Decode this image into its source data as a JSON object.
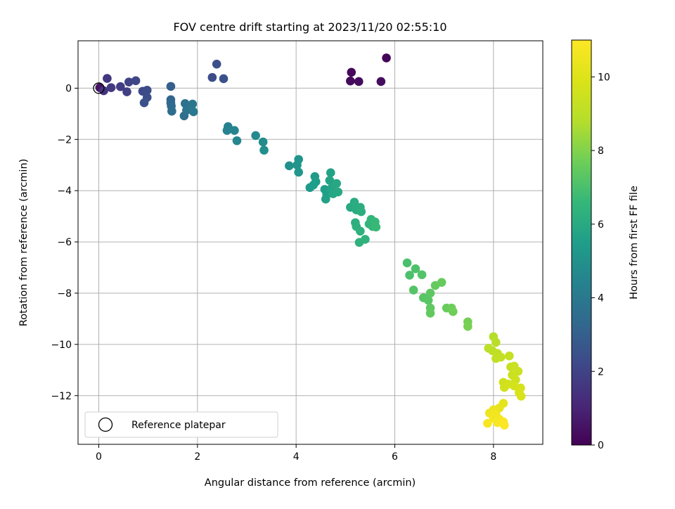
{
  "chart_data": {
    "type": "scatter",
    "title": "FOV centre drift starting at 2023/11/20 02:55:10",
    "xlabel": "Angular distance from reference (arcmin)",
    "ylabel": "Rotation from reference (arcmin)",
    "xlim": [
      -0.42,
      9.0
    ],
    "ylim": [
      -13.9,
      1.85
    ],
    "xticks": [
      0,
      2,
      4,
      6,
      8
    ],
    "yticks": [
      0,
      -2,
      -4,
      -6,
      -8,
      -10,
      -12
    ],
    "grid": true,
    "legend": {
      "position": "lower-left",
      "entries": [
        "Reference platepar"
      ]
    },
    "reference_point": {
      "x": 0,
      "y": 0,
      "label": "Reference platepar"
    },
    "colorbar": {
      "label": "Hours from first FF file",
      "range": [
        0,
        11
      ],
      "ticks": [
        0,
        2,
        4,
        6,
        8,
        10
      ],
      "colormap": "viridis"
    },
    "points": [
      {
        "x": 5.83,
        "y": 1.18,
        "t": 0.1
      },
      {
        "x": 5.12,
        "y": 0.62,
        "t": 0.2
      },
      {
        "x": 5.1,
        "y": 0.28,
        "t": 0.25
      },
      {
        "x": 5.27,
        "y": 0.26,
        "t": 0.3
      },
      {
        "x": 5.72,
        "y": 0.26,
        "t": 0.35
      },
      {
        "x": 0.02,
        "y": 0.02,
        "t": 0.5
      },
      {
        "x": 0.1,
        "y": -0.1,
        "t": 1.5
      },
      {
        "x": 0.17,
        "y": 0.38,
        "t": 1.6
      },
      {
        "x": 0.25,
        "y": 0.02,
        "t": 1.7
      },
      {
        "x": 0.44,
        "y": 0.06,
        "t": 1.8
      },
      {
        "x": 0.57,
        "y": -0.14,
        "t": 1.9
      },
      {
        "x": 0.61,
        "y": 0.24,
        "t": 2.0
      },
      {
        "x": 0.75,
        "y": 0.29,
        "t": 2.1
      },
      {
        "x": 0.89,
        "y": -0.12,
        "t": 2.2
      },
      {
        "x": 0.98,
        "y": -0.08,
        "t": 2.3
      },
      {
        "x": 0.98,
        "y": -0.36,
        "t": 2.4
      },
      {
        "x": 0.92,
        "y": -0.57,
        "t": 2.5
      },
      {
        "x": 2.3,
        "y": 0.42,
        "t": 2.3
      },
      {
        "x": 2.39,
        "y": 0.94,
        "t": 2.4
      },
      {
        "x": 2.53,
        "y": 0.37,
        "t": 2.5
      },
      {
        "x": 1.46,
        "y": 0.07,
        "t": 3.0
      },
      {
        "x": 1.46,
        "y": -0.45,
        "t": 3.2
      },
      {
        "x": 1.46,
        "y": -0.58,
        "t": 3.3
      },
      {
        "x": 1.47,
        "y": -0.7,
        "t": 3.4
      },
      {
        "x": 1.48,
        "y": -0.9,
        "t": 3.5
      },
      {
        "x": 1.73,
        "y": -1.08,
        "t": 3.6
      },
      {
        "x": 1.75,
        "y": -0.6,
        "t": 3.7
      },
      {
        "x": 1.78,
        "y": -0.86,
        "t": 3.8
      },
      {
        "x": 1.9,
        "y": -0.62,
        "t": 3.9
      },
      {
        "x": 1.92,
        "y": -0.92,
        "t": 4.0
      },
      {
        "x": 2.62,
        "y": -1.5,
        "t": 4.3
      },
      {
        "x": 2.6,
        "y": -1.65,
        "t": 4.4
      },
      {
        "x": 2.75,
        "y": -1.65,
        "t": 4.5
      },
      {
        "x": 2.8,
        "y": -2.05,
        "t": 4.6
      },
      {
        "x": 3.18,
        "y": -1.85,
        "t": 4.7
      },
      {
        "x": 3.33,
        "y": -2.1,
        "t": 4.8
      },
      {
        "x": 3.35,
        "y": -2.42,
        "t": 4.9
      },
      {
        "x": 3.86,
        "y": -3.03,
        "t": 5.0
      },
      {
        "x": 4.05,
        "y": -2.78,
        "t": 5.1
      },
      {
        "x": 4.02,
        "y": -3.0,
        "t": 5.15
      },
      {
        "x": 4.05,
        "y": -3.28,
        "t": 5.2
      },
      {
        "x": 4.28,
        "y": -3.88,
        "t": 5.3
      },
      {
        "x": 4.38,
        "y": -3.45,
        "t": 5.4
      },
      {
        "x": 4.4,
        "y": -3.65,
        "t": 5.45
      },
      {
        "x": 4.35,
        "y": -3.78,
        "t": 5.5
      },
      {
        "x": 4.58,
        "y": -3.95,
        "t": 5.55
      },
      {
        "x": 4.62,
        "y": -4.15,
        "t": 5.6
      },
      {
        "x": 4.6,
        "y": -4.33,
        "t": 5.65
      },
      {
        "x": 4.7,
        "y": -3.3,
        "t": 5.7
      },
      {
        "x": 4.68,
        "y": -3.6,
        "t": 5.75
      },
      {
        "x": 4.72,
        "y": -3.9,
        "t": 5.8
      },
      {
        "x": 4.75,
        "y": -4.12,
        "t": 5.85
      },
      {
        "x": 4.82,
        "y": -3.72,
        "t": 5.9
      },
      {
        "x": 4.85,
        "y": -4.05,
        "t": 5.95
      },
      {
        "x": 5.1,
        "y": -4.65,
        "t": 6.0
      },
      {
        "x": 5.18,
        "y": -4.45,
        "t": 6.05
      },
      {
        "x": 5.22,
        "y": -4.75,
        "t": 6.1
      },
      {
        "x": 5.3,
        "y": -4.65,
        "t": 6.15
      },
      {
        "x": 5.32,
        "y": -4.82,
        "t": 6.2
      },
      {
        "x": 5.2,
        "y": -5.25,
        "t": 6.2
      },
      {
        "x": 5.22,
        "y": -5.4,
        "t": 6.25
      },
      {
        "x": 5.3,
        "y": -5.58,
        "t": 6.3
      },
      {
        "x": 5.28,
        "y": -6.02,
        "t": 6.35
      },
      {
        "x": 5.4,
        "y": -5.9,
        "t": 6.4
      },
      {
        "x": 5.48,
        "y": -5.3,
        "t": 6.45
      },
      {
        "x": 5.52,
        "y": -5.12,
        "t": 6.5
      },
      {
        "x": 5.55,
        "y": -5.4,
        "t": 6.55
      },
      {
        "x": 5.6,
        "y": -5.22,
        "t": 6.6
      },
      {
        "x": 5.62,
        "y": -5.42,
        "t": 6.65
      },
      {
        "x": 6.25,
        "y": -6.82,
        "t": 7.0
      },
      {
        "x": 6.3,
        "y": -7.3,
        "t": 7.05
      },
      {
        "x": 6.42,
        "y": -7.05,
        "t": 7.1
      },
      {
        "x": 6.55,
        "y": -7.28,
        "t": 7.15
      },
      {
        "x": 6.38,
        "y": -7.88,
        "t": 7.2
      },
      {
        "x": 6.58,
        "y": -8.18,
        "t": 7.25
      },
      {
        "x": 6.68,
        "y": -8.28,
        "t": 7.3
      },
      {
        "x": 6.72,
        "y": -8.0,
        "t": 7.35
      },
      {
        "x": 6.72,
        "y": -8.58,
        "t": 7.4
      },
      {
        "x": 6.72,
        "y": -8.78,
        "t": 7.45
      },
      {
        "x": 6.82,
        "y": -7.7,
        "t": 7.5
      },
      {
        "x": 6.95,
        "y": -7.58,
        "t": 7.55
      },
      {
        "x": 7.05,
        "y": -8.58,
        "t": 7.6
      },
      {
        "x": 7.15,
        "y": -8.58,
        "t": 7.65
      },
      {
        "x": 7.18,
        "y": -8.72,
        "t": 7.7
      },
      {
        "x": 7.48,
        "y": -9.12,
        "t": 7.8
      },
      {
        "x": 7.48,
        "y": -9.3,
        "t": 7.85
      },
      {
        "x": 8.0,
        "y": -9.7,
        "t": 8.8
      },
      {
        "x": 8.05,
        "y": -9.92,
        "t": 8.9
      },
      {
        "x": 7.9,
        "y": -10.15,
        "t": 9.0
      },
      {
        "x": 7.98,
        "y": -10.25,
        "t": 9.05
      },
      {
        "x": 8.08,
        "y": -10.35,
        "t": 9.1
      },
      {
        "x": 8.05,
        "y": -10.55,
        "t": 9.15
      },
      {
        "x": 8.15,
        "y": -10.5,
        "t": 9.2
      },
      {
        "x": 8.32,
        "y": -10.45,
        "t": 9.25
      },
      {
        "x": 8.35,
        "y": -10.88,
        "t": 9.3
      },
      {
        "x": 8.42,
        "y": -10.85,
        "t": 9.35
      },
      {
        "x": 8.5,
        "y": -11.05,
        "t": 9.4
      },
      {
        "x": 8.38,
        "y": -11.2,
        "t": 9.45
      },
      {
        "x": 8.45,
        "y": -11.38,
        "t": 9.5
      },
      {
        "x": 8.2,
        "y": -11.48,
        "t": 9.55
      },
      {
        "x": 8.22,
        "y": -11.68,
        "t": 9.6
      },
      {
        "x": 8.3,
        "y": -11.55,
        "t": 9.65
      },
      {
        "x": 8.42,
        "y": -11.62,
        "t": 9.7
      },
      {
        "x": 8.55,
        "y": -11.7,
        "t": 9.75
      },
      {
        "x": 8.52,
        "y": -11.88,
        "t": 9.8
      },
      {
        "x": 8.56,
        "y": -12.02,
        "t": 9.85
      },
      {
        "x": 8.2,
        "y": -12.3,
        "t": 10.2
      },
      {
        "x": 8.12,
        "y": -12.48,
        "t": 10.3
      },
      {
        "x": 8.0,
        "y": -12.55,
        "t": 10.4
      },
      {
        "x": 7.92,
        "y": -12.68,
        "t": 10.5
      },
      {
        "x": 8.05,
        "y": -12.72,
        "t": 10.6
      },
      {
        "x": 8.0,
        "y": -12.88,
        "t": 10.65
      },
      {
        "x": 8.12,
        "y": -12.92,
        "t": 10.7
      },
      {
        "x": 8.08,
        "y": -13.05,
        "t": 10.8
      },
      {
        "x": 7.88,
        "y": -13.08,
        "t": 10.85
      },
      {
        "x": 8.2,
        "y": -13.02,
        "t": 10.9
      },
      {
        "x": 8.22,
        "y": -13.15,
        "t": 10.95
      }
    ]
  }
}
